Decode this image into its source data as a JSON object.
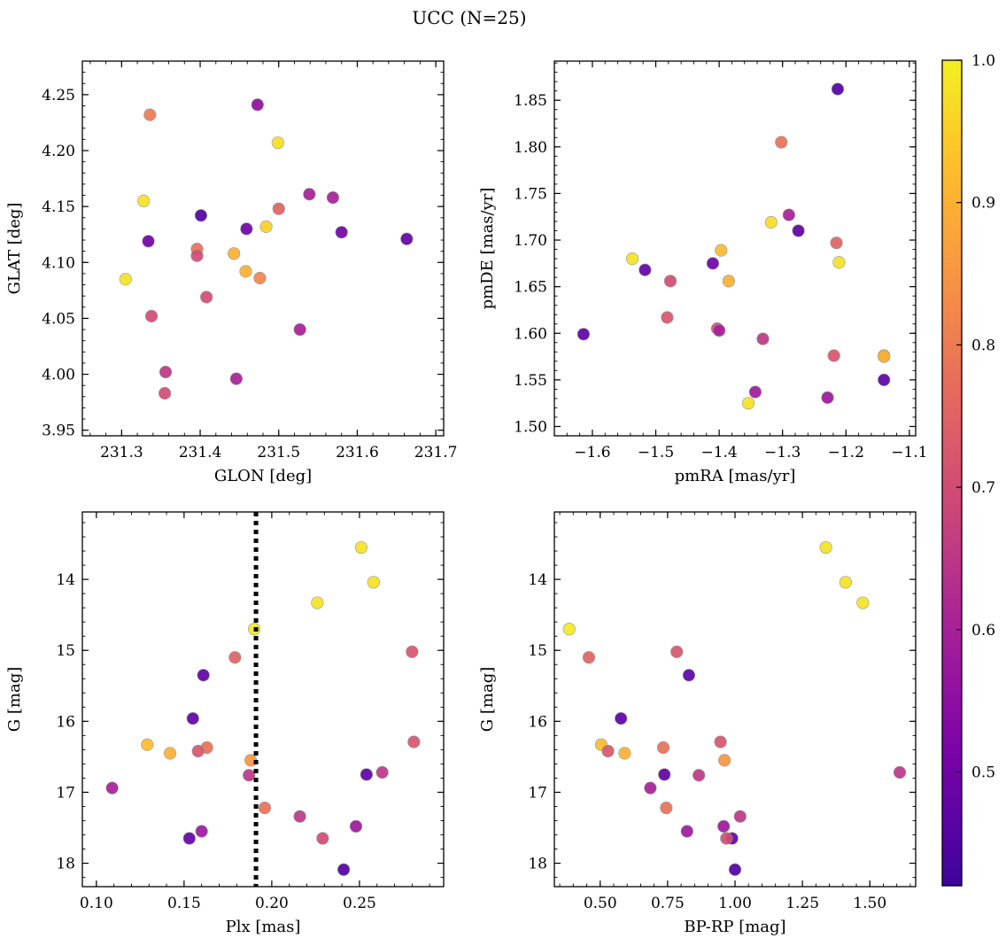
{
  "figure": {
    "title": "UCC (N=25)"
  },
  "chart_data": [
    {
      "type": "scatter",
      "xlabel": "GLON [deg]",
      "ylabel": "GLAT [deg]",
      "xlim": [
        231.25,
        231.71
      ],
      "ylim": [
        3.945,
        4.28
      ],
      "xticks": [
        231.3,
        231.4,
        231.5,
        231.6,
        231.7
      ],
      "xticklabels": [
        "231.3",
        "231.4",
        "231.5",
        "231.6",
        "231.7"
      ],
      "yticks": [
        3.95,
        4.0,
        4.05,
        4.1,
        4.15,
        4.2,
        4.25
      ],
      "yticklabels": [
        "3.95",
        "4.00",
        "4.05",
        "4.10",
        "4.15",
        "4.20",
        "4.25"
      ],
      "points": [
        {
          "x": 231.336,
          "y": 4.232,
          "c": 0.8
        },
        {
          "x": 231.473,
          "y": 4.241,
          "c": 0.55
        },
        {
          "x": 231.499,
          "y": 4.207,
          "c": 0.97
        },
        {
          "x": 231.328,
          "y": 4.155,
          "c": 0.98
        },
        {
          "x": 231.334,
          "y": 4.119,
          "c": 0.5
        },
        {
          "x": 231.401,
          "y": 4.142,
          "c": 0.45
        },
        {
          "x": 231.459,
          "y": 4.13,
          "c": 0.5
        },
        {
          "x": 231.484,
          "y": 4.132,
          "c": 0.95
        },
        {
          "x": 231.5,
          "y": 4.148,
          "c": 0.75
        },
        {
          "x": 231.539,
          "y": 4.161,
          "c": 0.6
        },
        {
          "x": 231.569,
          "y": 4.158,
          "c": 0.6
        },
        {
          "x": 231.58,
          "y": 4.127,
          "c": 0.5
        },
        {
          "x": 231.663,
          "y": 4.121,
          "c": 0.48
        },
        {
          "x": 231.305,
          "y": 4.085,
          "c": 0.98
        },
        {
          "x": 231.396,
          "y": 4.112,
          "c": 0.78
        },
        {
          "x": 231.396,
          "y": 4.106,
          "c": 0.7
        },
        {
          "x": 231.443,
          "y": 4.108,
          "c": 0.9
        },
        {
          "x": 231.458,
          "y": 4.092,
          "c": 0.9
        },
        {
          "x": 231.476,
          "y": 4.086,
          "c": 0.82
        },
        {
          "x": 231.408,
          "y": 4.069,
          "c": 0.7
        },
        {
          "x": 231.338,
          "y": 4.052,
          "c": 0.7
        },
        {
          "x": 231.527,
          "y": 4.04,
          "c": 0.6
        },
        {
          "x": 231.356,
          "y": 4.002,
          "c": 0.65
        },
        {
          "x": 231.446,
          "y": 3.996,
          "c": 0.6
        },
        {
          "x": 231.355,
          "y": 3.983,
          "c": 0.7
        }
      ]
    },
    {
      "type": "scatter",
      "xlabel": "pmRA [mas/yr]",
      "ylabel": "pmDE [mas/yr]",
      "xlim": [
        -1.66,
        -1.09
      ],
      "ylim": [
        1.49,
        1.892
      ],
      "xticks": [
        -1.6,
        -1.5,
        -1.4,
        -1.3,
        -1.2,
        -1.1
      ],
      "xticklabels": [
        "−1.6",
        "−1.5",
        "−1.4",
        "−1.3",
        "−1.2",
        "−1.1"
      ],
      "yticks": [
        1.5,
        1.55,
        1.6,
        1.65,
        1.7,
        1.75,
        1.8,
        1.85
      ],
      "yticklabels": [
        "1.50",
        "1.55",
        "1.60",
        "1.65",
        "1.70",
        "1.75",
        "1.80",
        "1.85"
      ],
      "points": [
        {
          "x": -1.213,
          "y": 1.862,
          "c": 0.45
        },
        {
          "x": -1.302,
          "y": 1.805,
          "c": 0.78
        },
        {
          "x": -1.318,
          "y": 1.719,
          "c": 0.97
        },
        {
          "x": -1.29,
          "y": 1.727,
          "c": 0.6
        },
        {
          "x": -1.275,
          "y": 1.71,
          "c": 0.47
        },
        {
          "x": -1.215,
          "y": 1.697,
          "c": 0.75
        },
        {
          "x": -1.211,
          "y": 1.676,
          "c": 0.98
        },
        {
          "x": -1.397,
          "y": 1.689,
          "c": 0.92
        },
        {
          "x": -1.41,
          "y": 1.675,
          "c": 0.5
        },
        {
          "x": -1.385,
          "y": 1.656,
          "c": 0.9
        },
        {
          "x": -1.537,
          "y": 1.68,
          "c": 0.98
        },
        {
          "x": -1.517,
          "y": 1.668,
          "c": 0.48
        },
        {
          "x": -1.477,
          "y": 1.656,
          "c": 0.7
        },
        {
          "x": -1.482,
          "y": 1.617,
          "c": 0.72
        },
        {
          "x": -1.614,
          "y": 1.599,
          "c": 0.47
        },
        {
          "x": -1.403,
          "y": 1.605,
          "c": 0.7
        },
        {
          "x": -1.4,
          "y": 1.603,
          "c": 0.6
        },
        {
          "x": -1.331,
          "y": 1.594,
          "c": 0.65
        },
        {
          "x": -1.219,
          "y": 1.576,
          "c": 0.72
        },
        {
          "x": -1.14,
          "y": 1.576,
          "c": 0.88
        },
        {
          "x": -1.14,
          "y": 1.575,
          "c": 0.9
        },
        {
          "x": -1.14,
          "y": 1.55,
          "c": 0.47
        },
        {
          "x": -1.343,
          "y": 1.537,
          "c": 0.58
        },
        {
          "x": -1.229,
          "y": 1.531,
          "c": 0.58
        },
        {
          "x": -1.354,
          "y": 1.525,
          "c": 0.98
        }
      ]
    },
    {
      "type": "scatter",
      "xlabel": "Plx [mas]",
      "ylabel": "G [mag]",
      "xlim": [
        0.092,
        0.298
      ],
      "ylim": [
        18.33,
        13.05
      ],
      "yinverted": true,
      "vline": {
        "x": 0.191,
        "style": "dotted",
        "color": "#000000"
      },
      "xticks": [
        0.1,
        0.15,
        0.2,
        0.25
      ],
      "xticklabels": [
        "0.10",
        "0.15",
        "0.20",
        "0.25"
      ],
      "yticks": [
        14,
        15,
        16,
        17,
        18
      ],
      "yticklabels": [
        "14",
        "15",
        "16",
        "17",
        "18"
      ],
      "points": [
        {
          "x": 0.251,
          "y": 13.55,
          "c": 0.98
        },
        {
          "x": 0.258,
          "y": 14.04,
          "c": 0.98
        },
        {
          "x": 0.226,
          "y": 14.33,
          "c": 0.98
        },
        {
          "x": 0.19,
          "y": 14.7,
          "c": 0.99
        },
        {
          "x": 0.28,
          "y": 15.02,
          "c": 0.72
        },
        {
          "x": 0.179,
          "y": 15.1,
          "c": 0.75
        },
        {
          "x": 0.161,
          "y": 15.35,
          "c": 0.47
        },
        {
          "x": 0.155,
          "y": 15.96,
          "c": 0.47
        },
        {
          "x": 0.281,
          "y": 16.29,
          "c": 0.72
        },
        {
          "x": 0.129,
          "y": 16.33,
          "c": 0.92
        },
        {
          "x": 0.163,
          "y": 16.37,
          "c": 0.78
        },
        {
          "x": 0.158,
          "y": 16.42,
          "c": 0.72
        },
        {
          "x": 0.142,
          "y": 16.45,
          "c": 0.9
        },
        {
          "x": 0.188,
          "y": 16.55,
          "c": 0.85
        },
        {
          "x": 0.263,
          "y": 16.72,
          "c": 0.65
        },
        {
          "x": 0.254,
          "y": 16.75,
          "c": 0.47
        },
        {
          "x": 0.187,
          "y": 16.76,
          "c": 0.65
        },
        {
          "x": 0.109,
          "y": 16.94,
          "c": 0.6
        },
        {
          "x": 0.196,
          "y": 17.22,
          "c": 0.78
        },
        {
          "x": 0.216,
          "y": 17.34,
          "c": 0.65
        },
        {
          "x": 0.248,
          "y": 17.48,
          "c": 0.58
        },
        {
          "x": 0.16,
          "y": 17.55,
          "c": 0.58
        },
        {
          "x": 0.153,
          "y": 17.65,
          "c": 0.48
        },
        {
          "x": 0.229,
          "y": 17.65,
          "c": 0.7
        },
        {
          "x": 0.241,
          "y": 18.09,
          "c": 0.45
        }
      ]
    },
    {
      "type": "scatter",
      "xlabel": "BP-RP [mag]",
      "ylabel": "G [mag]",
      "xlim": [
        0.33,
        1.67
      ],
      "ylim": [
        18.33,
        13.05
      ],
      "yinverted": true,
      "xticks": [
        0.5,
        0.75,
        1.0,
        1.25,
        1.5
      ],
      "xticklabels": [
        "0.50",
        "0.75",
        "1.00",
        "1.25",
        "1.50"
      ],
      "yticks": [
        14,
        15,
        16,
        17,
        18
      ],
      "yticklabels": [
        "14",
        "15",
        "16",
        "17",
        "18"
      ],
      "points": [
        {
          "x": 1.337,
          "y": 13.55,
          "c": 0.98
        },
        {
          "x": 1.41,
          "y": 14.04,
          "c": 0.98
        },
        {
          "x": 1.474,
          "y": 14.33,
          "c": 0.98
        },
        {
          "x": 0.385,
          "y": 14.7,
          "c": 0.99
        },
        {
          "x": 0.784,
          "y": 15.02,
          "c": 0.72
        },
        {
          "x": 0.458,
          "y": 15.1,
          "c": 0.75
        },
        {
          "x": 0.829,
          "y": 15.35,
          "c": 0.47
        },
        {
          "x": 0.577,
          "y": 15.96,
          "c": 0.47
        },
        {
          "x": 0.946,
          "y": 16.29,
          "c": 0.72
        },
        {
          "x": 0.504,
          "y": 16.33,
          "c": 0.92
        },
        {
          "x": 0.734,
          "y": 16.37,
          "c": 0.78
        },
        {
          "x": 0.529,
          "y": 16.42,
          "c": 0.72
        },
        {
          "x": 0.591,
          "y": 16.45,
          "c": 0.9
        },
        {
          "x": 0.961,
          "y": 16.55,
          "c": 0.85
        },
        {
          "x": 1.611,
          "y": 16.72,
          "c": 0.65
        },
        {
          "x": 0.738,
          "y": 16.75,
          "c": 0.47
        },
        {
          "x": 0.866,
          "y": 16.76,
          "c": 0.65
        },
        {
          "x": 0.686,
          "y": 16.94,
          "c": 0.6
        },
        {
          "x": 0.745,
          "y": 17.22,
          "c": 0.78
        },
        {
          "x": 1.019,
          "y": 17.34,
          "c": 0.65
        },
        {
          "x": 0.958,
          "y": 17.48,
          "c": 0.58
        },
        {
          "x": 0.822,
          "y": 17.55,
          "c": 0.58
        },
        {
          "x": 0.989,
          "y": 17.65,
          "c": 0.48
        },
        {
          "x": 0.968,
          "y": 17.65,
          "c": 0.7
        },
        {
          "x": 1.0,
          "y": 18.09,
          "c": 0.45
        }
      ]
    }
  ],
  "colorbar": {
    "range": [
      0.42,
      1.0
    ],
    "ticks": [
      0.5,
      0.6,
      0.7,
      0.8,
      0.9,
      1.0
    ],
    "ticklabels": [
      "0.5",
      "0.6",
      "0.7",
      "0.8",
      "0.9",
      "1.0"
    ],
    "colormap": "plasma"
  }
}
